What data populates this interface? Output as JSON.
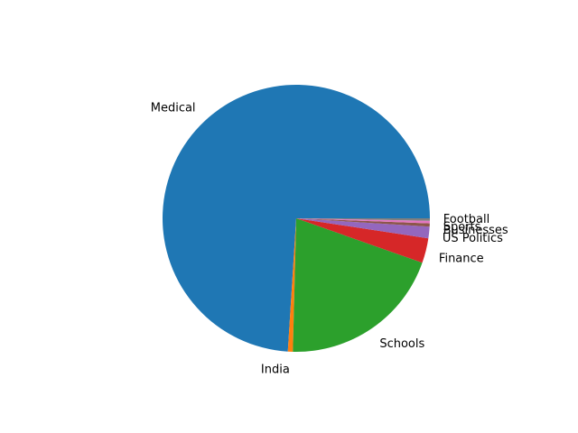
{
  "chart_data": {
    "type": "pie",
    "title": "",
    "labels": [
      "Medical",
      "India",
      "Schools",
      "Finance",
      "US Politics",
      "Businesses",
      "Sports",
      "Football"
    ],
    "values": [
      74.0,
      0.6,
      20.0,
      3.0,
      1.4,
      0.4,
      0.3,
      0.3
    ],
    "colors": [
      "#1f77b4",
      "#ff7f0e",
      "#2ca02c",
      "#d62728",
      "#9467bd",
      "#8c564b",
      "#e377c2",
      "#7f7f7f"
    ],
    "start_angle_deg": 0,
    "direction": "counterclockwise",
    "legend": "none"
  }
}
